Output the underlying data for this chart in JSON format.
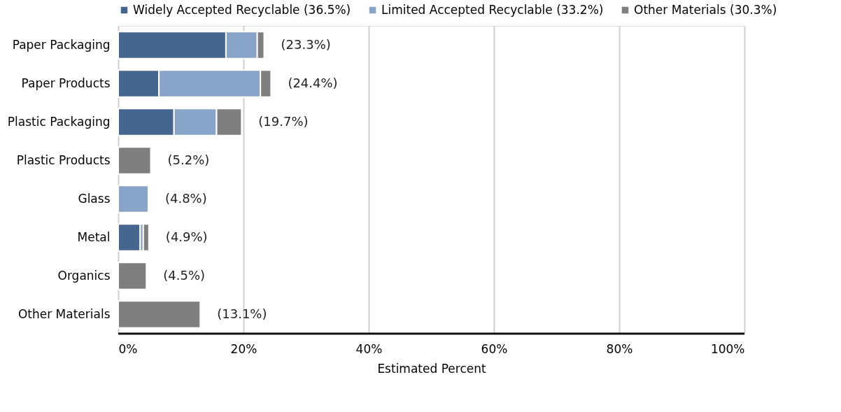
{
  "chart_data": {
    "type": "bar",
    "orientation": "horizontal",
    "stacked": true,
    "categories": [
      "Paper Packaging",
      "Paper Products",
      "Plastic Packaging",
      "Plastic Products",
      "Glass",
      "Metal",
      "Organics",
      "Other Materials"
    ],
    "series": [
      {
        "name": "Widely Accepted Recyclable (36.5%)",
        "color": "#44668f",
        "values": [
          17.2,
          6.5,
          8.9,
          null,
          null,
          3.5,
          null,
          null
        ]
      },
      {
        "name": "Limited Accepted Recyclable (33.2%)",
        "color": "#87a3c7",
        "values": [
          5.0,
          16.2,
          6.8,
          null,
          4.8,
          0.5,
          null,
          null
        ]
      },
      {
        "name": "Other Materials (30.3%)",
        "color": "#7f7f7f",
        "values": [
          1.1,
          1.7,
          4.0,
          5.2,
          null,
          0.9,
          4.5,
          13.1
        ]
      }
    ],
    "totals": [
      "(23.3%)",
      "(24.4%)",
      "(19.7%)",
      "(5.2%)",
      "(4.8%)",
      "(4.9%)",
      "(4.5%)",
      "(13.1%)"
    ],
    "xlabel": "Estimated Percent",
    "xlim": [
      0,
      100
    ],
    "xticks": [
      {
        "value": 0,
        "label": "0%"
      },
      {
        "value": 20,
        "label": "20%"
      },
      {
        "value": 40,
        "label": "40%"
      },
      {
        "value": 60,
        "label": "60%"
      },
      {
        "value": 80,
        "label": "80%"
      },
      {
        "value": 100,
        "label": "100%"
      }
    ],
    "grid": "x",
    "legend": "top"
  }
}
